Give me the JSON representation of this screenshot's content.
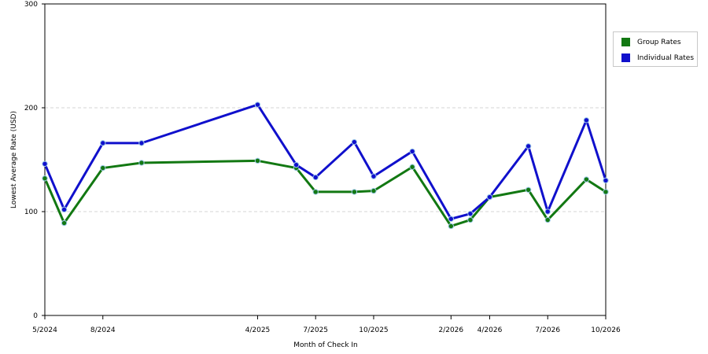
{
  "chart_data": {
    "type": "line",
    "title": "",
    "xlabel": "Month of Check In",
    "ylabel": "Lowest Average Rate (USD)",
    "ylim": [
      0,
      300
    ],
    "y_ticks": [
      0,
      100,
      200,
      300
    ],
    "grid": "horizontal dashed",
    "legend_position": "right",
    "x": [
      "5/2024",
      "6/2024",
      "7/2024",
      "8/2024",
      "9/2024",
      "10/2024",
      "11/2024",
      "12/2024",
      "1/2025",
      "2/2025",
      "3/2025",
      "4/2025",
      "5/2025",
      "6/2025",
      "7/2025",
      "8/2025",
      "9/2025",
      "10/2025",
      "11/2025",
      "12/2025",
      "1/2026",
      "2/2026",
      "3/2026",
      "4/2026",
      "5/2026",
      "6/2026",
      "7/2026",
      "8/2026",
      "9/2026",
      "10/2026"
    ],
    "x_tick_labels": [
      "5/2024",
      "8/2024",
      "4/2025",
      "7/2025",
      "10/2025",
      "2/2026",
      "4/2026",
      "7/2026",
      "10/2026"
    ],
    "series": [
      {
        "name": "Group Rates",
        "color": "#127812",
        "x": [
          "5/2024",
          "6/2024",
          "8/2024",
          "10/2024",
          "4/2025",
          "6/2025",
          "7/2025",
          "9/2025",
          "10/2025",
          "12/2025",
          "2/2026",
          "3/2026",
          "4/2026",
          "6/2026",
          "7/2026",
          "9/2026",
          "10/2026"
        ],
        "values": [
          132,
          89,
          142,
          147,
          149,
          142,
          119,
          119,
          120,
          143,
          86,
          92,
          114,
          121,
          92,
          131,
          119
        ]
      },
      {
        "name": "Individual Rates",
        "color": "#1010cc",
        "x": [
          "5/2024",
          "6/2024",
          "8/2024",
          "10/2024",
          "4/2025",
          "6/2025",
          "7/2025",
          "9/2025",
          "10/2025",
          "12/2025",
          "2/2026",
          "3/2026",
          "4/2026",
          "6/2026",
          "7/2026",
          "9/2026",
          "10/2026"
        ],
        "values": [
          146,
          102,
          166,
          166,
          203,
          145,
          133,
          167,
          134,
          158,
          93,
          98,
          114,
          163,
          100,
          188,
          130
        ]
      }
    ]
  }
}
